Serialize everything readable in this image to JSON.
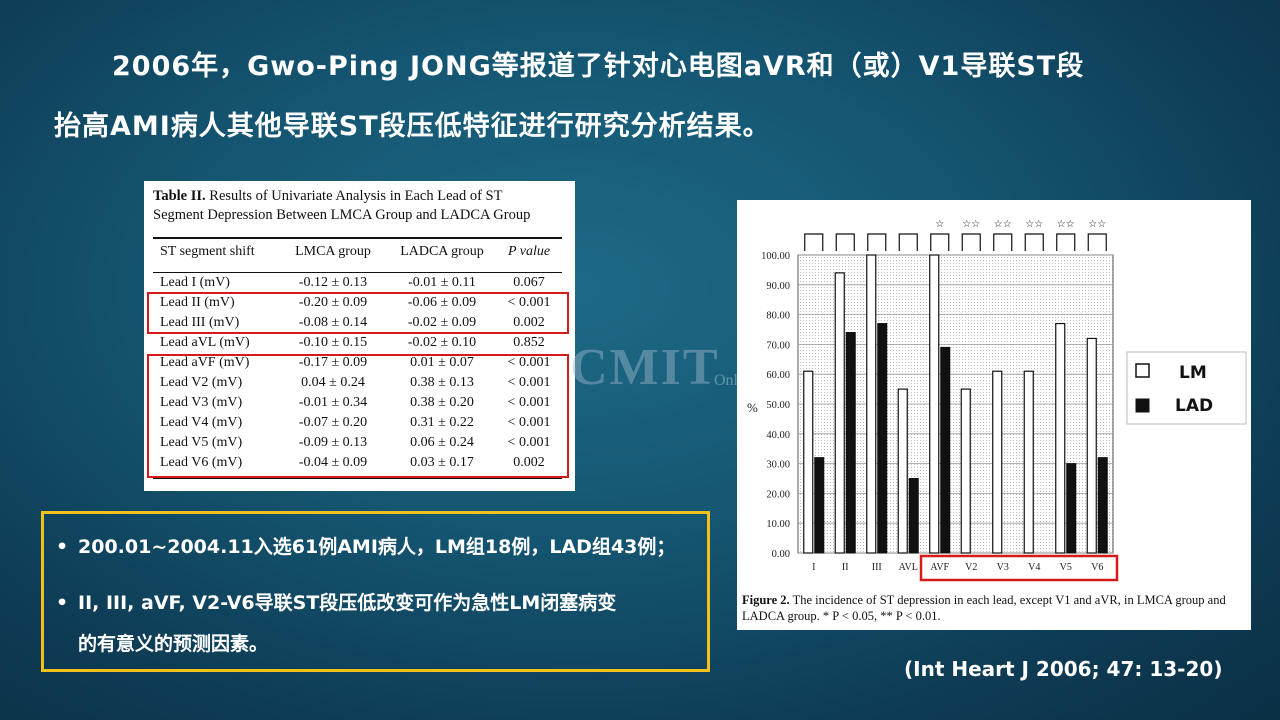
{
  "slide": {
    "title_line1": "2006年，Gwo-Ping JONG等报道了针对心电图aVR和（或）V1导联ST段",
    "title_line2": "抬高AMI病人其他导联ST段压低特征进行研究分析结果。",
    "reference": "(Int Heart J 2006; 47: 13-20)",
    "watermark": "CMIT",
    "watermark_small": "Online"
  },
  "table": {
    "caption_bold": "Table II.",
    "caption_rest": "Results of Univariate Analysis in Each Lead of ST",
    "caption_line2": "Segment Depression Between LMCA Group and LADCA Group",
    "headers": [
      "ST segment shift",
      "LMCA group",
      "LADCA group",
      "P value"
    ],
    "rows": [
      [
        "Lead I (mV)",
        "-0.12 ± 0.13",
        "-0.01 ± 0.11",
        "0.067"
      ],
      [
        "Lead II (mV)",
        "-0.20 ± 0.09",
        "-0.06 ± 0.09",
        "< 0.001"
      ],
      [
        "Lead III (mV)",
        "-0.08 ± 0.14",
        "-0.02 ± 0.09",
        "0.002"
      ],
      [
        "Lead aVL (mV)",
        "-0.10 ± 0.15",
        "-0.02 ± 0.10",
        "0.852"
      ],
      [
        "Lead aVF (mV)",
        "-0.17 ± 0.09",
        "0.01 ± 0.07",
        "< 0.001"
      ],
      [
        "Lead V2 (mV)",
        "0.04 ± 0.24",
        "0.38 ± 0.13",
        "< 0.001"
      ],
      [
        "Lead V3 (mV)",
        "-0.01 ± 0.34",
        "0.38 ± 0.20",
        "< 0.001"
      ],
      [
        "Lead V4 (mV)",
        "-0.07 ± 0.20",
        "0.31 ± 0.22",
        "< 0.001"
      ],
      [
        "Lead V5 (mV)",
        "-0.09 ± 0.13",
        "0.06 ± 0.24",
        "< 0.001"
      ],
      [
        "Lead V6 (mV)",
        "-0.04 ± 0.09",
        "0.03 ± 0.17",
        "0.002"
      ]
    ]
  },
  "bullets": [
    {
      "marker": "•",
      "text": "200.01~2004.11入选61例AMI病人，LM组18例，LAD组43例；"
    },
    {
      "marker": "•",
      "text": "II, III, aVF, V2-V6导联ST段压低改变可作为急性LM闭塞病变"
    },
    {
      "marker": "",
      "text": "的有意义的预测因素。"
    }
  ],
  "colors": {
    "accent_yellow": "#f2c01a",
    "highlight_red": "#d41a1a"
  },
  "chart_data": {
    "type": "bar",
    "categories": [
      "I",
      "II",
      "III",
      "AVL",
      "AVF",
      "V2",
      "V3",
      "V4",
      "V5",
      "V6"
    ],
    "series": [
      {
        "name": "LM",
        "values": [
          61,
          94,
          100,
          55,
          100,
          55,
          61,
          61,
          77,
          72
        ]
      },
      {
        "name": "LAD",
        "values": [
          32,
          74,
          77,
          25,
          69,
          0,
          0,
          0,
          30,
          32
        ]
      }
    ],
    "significance": [
      "",
      "",
      "",
      "",
      "*",
      "**",
      "**",
      "**",
      "**",
      "**"
    ],
    "ylabel": "%",
    "ylim": [
      0,
      100
    ],
    "yticks": [
      "0.00",
      "10.00",
      "20.00",
      "30.00",
      "40.00",
      "50.00",
      "60.00",
      "70.00",
      "80.00",
      "90.00",
      "100.00"
    ],
    "legend_position": "right",
    "highlighted_categories": [
      "AVF",
      "V2",
      "V3",
      "V4",
      "V5",
      "V6"
    ],
    "caption_bold": "Figure 2.",
    "caption_rest": "The incidence of ST depression in each lead, except V1 and aVR, in LMCA group and",
    "caption_line2": "LADCA group. * P < 0.05, ** P < 0.01."
  }
}
